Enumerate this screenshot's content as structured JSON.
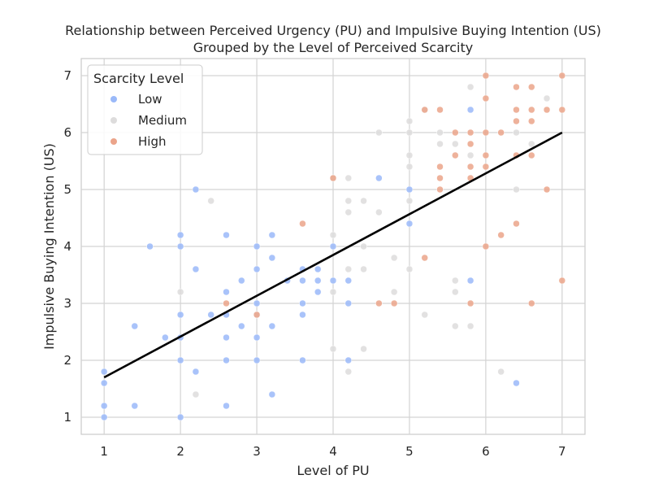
{
  "chart_data": {
    "type": "scatter",
    "title": "Relationship between Perceived Urgency (PU) and Impulsive Buying Intention (US)",
    "subtitle": "Grouped by the Level of Perceived Scarcity",
    "xlabel": "Level of PU",
    "ylabel": "Impulsive Buying Intention (US)",
    "xlim": [
      0.7,
      7.3
    ],
    "ylim": [
      0.7,
      7.3
    ],
    "xticks": [
      "1",
      "2",
      "3",
      "4",
      "5",
      "6",
      "7"
    ],
    "yticks": [
      "1",
      "2",
      "3",
      "4",
      "5",
      "6",
      "7"
    ],
    "grid": true,
    "legend": {
      "title": "Scarcity Level",
      "placement": "top-left",
      "entries": [
        "Low",
        "Medium",
        "High"
      ]
    },
    "series": [
      {
        "name": "Low",
        "color": "#9ab9f9",
        "points": [
          [
            1.0,
            1.0
          ],
          [
            1.0,
            1.2
          ],
          [
            1.0,
            1.6
          ],
          [
            1.0,
            1.8
          ],
          [
            1.4,
            1.2
          ],
          [
            1.4,
            2.6
          ],
          [
            1.6,
            4.0
          ],
          [
            1.8,
            2.4
          ],
          [
            2.0,
            1.0
          ],
          [
            2.0,
            2.0
          ],
          [
            2.0,
            2.4
          ],
          [
            2.0,
            2.8
          ],
          [
            2.0,
            4.0
          ],
          [
            2.0,
            4.2
          ],
          [
            2.2,
            1.8
          ],
          [
            2.2,
            3.6
          ],
          [
            2.2,
            5.0
          ],
          [
            2.4,
            2.8
          ],
          [
            2.6,
            1.2
          ],
          [
            2.6,
            2.0
          ],
          [
            2.6,
            2.4
          ],
          [
            2.6,
            2.8
          ],
          [
            2.6,
            3.2
          ],
          [
            2.6,
            4.2
          ],
          [
            2.8,
            2.6
          ],
          [
            2.8,
            3.4
          ],
          [
            3.0,
            2.0
          ],
          [
            3.0,
            2.4
          ],
          [
            3.0,
            2.8
          ],
          [
            3.0,
            3.0
          ],
          [
            3.0,
            3.6
          ],
          [
            3.0,
            4.0
          ],
          [
            3.2,
            1.4
          ],
          [
            3.2,
            2.6
          ],
          [
            3.2,
            3.8
          ],
          [
            3.2,
            4.2
          ],
          [
            3.4,
            3.4
          ],
          [
            3.6,
            2.0
          ],
          [
            3.6,
            2.8
          ],
          [
            3.6,
            3.0
          ],
          [
            3.6,
            3.4
          ],
          [
            3.6,
            3.6
          ],
          [
            3.8,
            3.2
          ],
          [
            3.8,
            3.4
          ],
          [
            3.8,
            3.6
          ],
          [
            4.0,
            3.4
          ],
          [
            4.0,
            4.0
          ],
          [
            4.2,
            2.0
          ],
          [
            4.2,
            3.0
          ],
          [
            4.2,
            3.4
          ],
          [
            4.6,
            5.2
          ],
          [
            5.0,
            4.4
          ],
          [
            5.0,
            5.0
          ],
          [
            5.8,
            3.4
          ],
          [
            5.8,
            6.4
          ],
          [
            6.4,
            1.6
          ]
        ]
      },
      {
        "name": "Medium",
        "color": "#dddcdc",
        "points": [
          [
            2.0,
            3.2
          ],
          [
            2.2,
            1.4
          ],
          [
            2.4,
            4.8
          ],
          [
            3.0,
            2.8
          ],
          [
            4.0,
            2.2
          ],
          [
            4.0,
            3.2
          ],
          [
            4.0,
            4.2
          ],
          [
            4.0,
            5.2
          ],
          [
            4.2,
            1.8
          ],
          [
            4.2,
            3.6
          ],
          [
            4.2,
            4.6
          ],
          [
            4.2,
            4.8
          ],
          [
            4.2,
            5.2
          ],
          [
            4.4,
            2.2
          ],
          [
            4.4,
            3.6
          ],
          [
            4.4,
            4.0
          ],
          [
            4.4,
            4.8
          ],
          [
            4.6,
            4.6
          ],
          [
            4.6,
            6.0
          ],
          [
            4.8,
            3.2
          ],
          [
            4.8,
            3.8
          ],
          [
            5.0,
            3.6
          ],
          [
            5.0,
            4.8
          ],
          [
            5.0,
            5.4
          ],
          [
            5.0,
            5.6
          ],
          [
            5.0,
            6.0
          ],
          [
            5.0,
            6.2
          ],
          [
            5.2,
            2.8
          ],
          [
            5.2,
            6.4
          ],
          [
            5.4,
            5.8
          ],
          [
            5.4,
            6.0
          ],
          [
            5.6,
            2.6
          ],
          [
            5.6,
            3.2
          ],
          [
            5.6,
            3.4
          ],
          [
            5.6,
            5.8
          ],
          [
            5.8,
            2.6
          ],
          [
            5.8,
            5.6
          ],
          [
            5.8,
            6.8
          ],
          [
            6.2,
            1.8
          ],
          [
            6.4,
            5.0
          ],
          [
            6.4,
            6.0
          ],
          [
            6.6,
            5.8
          ],
          [
            6.8,
            6.6
          ]
        ]
      },
      {
        "name": "High",
        "color": "#eba48a",
        "points": [
          [
            2.6,
            3.0
          ],
          [
            3.0,
            2.8
          ],
          [
            3.6,
            4.4
          ],
          [
            4.0,
            5.2
          ],
          [
            4.6,
            3.0
          ],
          [
            4.8,
            3.0
          ],
          [
            5.2,
            3.8
          ],
          [
            5.2,
            6.4
          ],
          [
            5.4,
            5.0
          ],
          [
            5.4,
            5.2
          ],
          [
            5.4,
            5.4
          ],
          [
            5.4,
            6.4
          ],
          [
            5.6,
            5.6
          ],
          [
            5.6,
            6.0
          ],
          [
            5.8,
            3.0
          ],
          [
            5.8,
            5.2
          ],
          [
            5.8,
            5.4
          ],
          [
            5.8,
            5.8
          ],
          [
            5.8,
            6.0
          ],
          [
            6.0,
            4.0
          ],
          [
            6.0,
            5.4
          ],
          [
            6.0,
            5.6
          ],
          [
            6.0,
            6.0
          ],
          [
            6.0,
            6.6
          ],
          [
            6.0,
            7.0
          ],
          [
            6.2,
            4.2
          ],
          [
            6.2,
            6.0
          ],
          [
            6.4,
            4.4
          ],
          [
            6.4,
            5.6
          ],
          [
            6.4,
            6.2
          ],
          [
            6.4,
            6.4
          ],
          [
            6.4,
            6.8
          ],
          [
            6.6,
            3.0
          ],
          [
            6.6,
            5.6
          ],
          [
            6.6,
            6.2
          ],
          [
            6.6,
            6.4
          ],
          [
            6.6,
            6.8
          ],
          [
            6.8,
            5.0
          ],
          [
            6.8,
            6.4
          ],
          [
            7.0,
            3.4
          ],
          [
            7.0,
            6.4
          ],
          [
            7.0,
            7.0
          ]
        ]
      }
    ],
    "trendline": {
      "color": "#000000",
      "points": [
        [
          1.0,
          1.7
        ],
        [
          7.0,
          6.0
        ]
      ]
    }
  }
}
